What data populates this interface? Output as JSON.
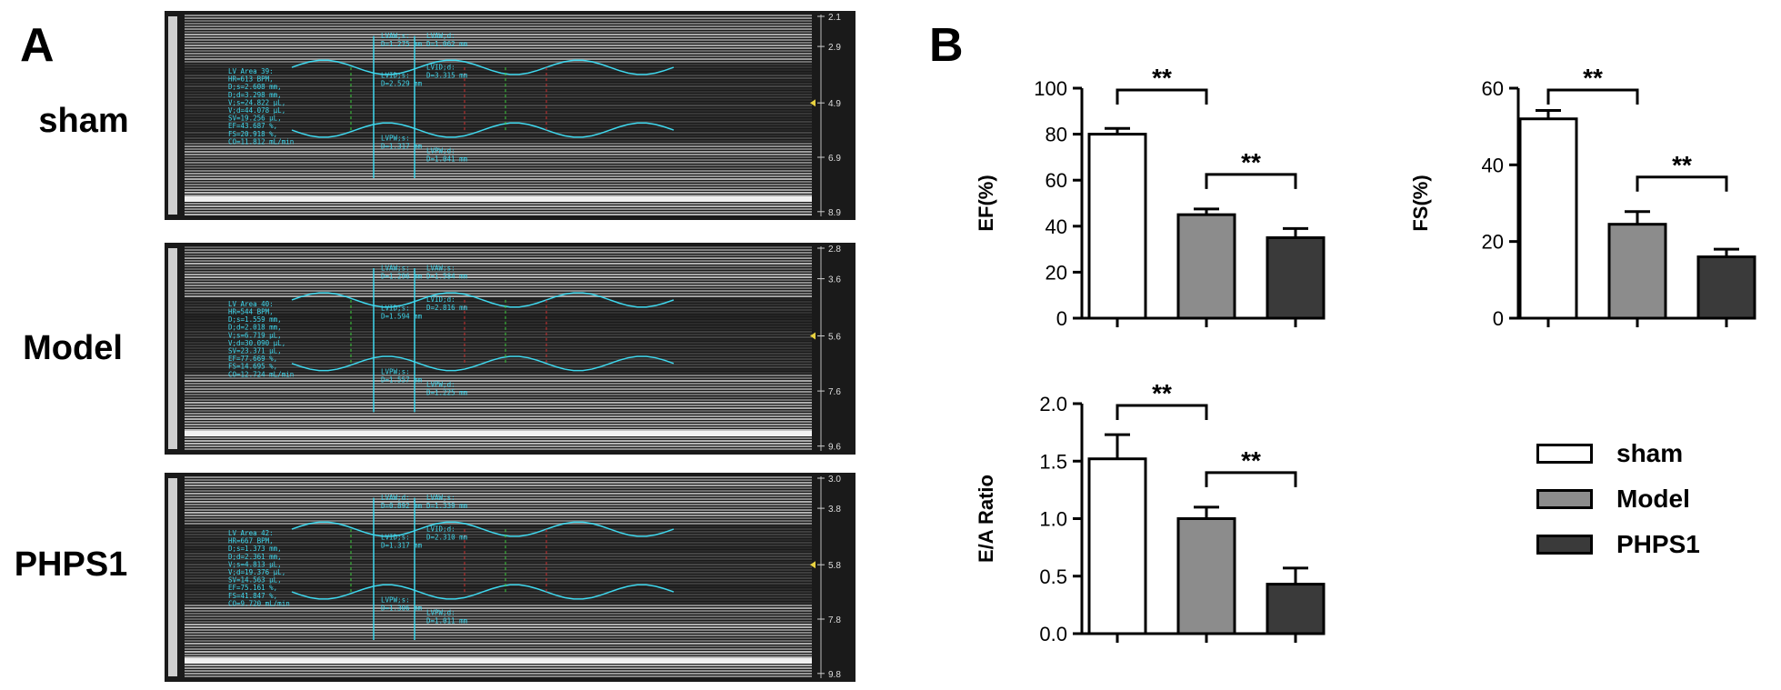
{
  "panels": {
    "a_label": "A",
    "b_label": "B"
  },
  "echo_rows": [
    {
      "label": "sham",
      "depth_ticks": [
        "2.1",
        "2.9",
        "4.9",
        "6.9",
        "8.9"
      ],
      "measurements": [
        "LV Area 39:",
        "HR=613 BPM,",
        "D;s=2.608 mm,",
        "D;d=3.298 mm,",
        "V;s=24.822 µL,",
        "V;d=44.078 µL,",
        "SV=19.256 µL,",
        "EF=43.687 %,",
        "FS=20.918 %,",
        "CO=11.812 mL/min"
      ],
      "tags": [
        "LVAW;s:",
        "D=1.275 mm",
        "LVAW;d:",
        "D=1.062 mm",
        "LVID;d:",
        "D=3.315 mm",
        "LVID;s:",
        "D=2.529 mm",
        "LVPW;s:",
        "D=1.317 mm",
        "LVPW;d:",
        "D=1.041 mm"
      ]
    },
    {
      "label": "Model",
      "depth_ticks": [
        "2.8",
        "3.6",
        "5.6",
        "7.6",
        "9.6"
      ],
      "measurements": [
        "LV Area 40:",
        "HR=544 BPM,",
        "D;s=1.559 mm,",
        "D;d=2.018 mm,",
        "V;s=6.719 µL,",
        "V;d=30.090 µL,",
        "SV=23.371 µL,",
        "EF=77.669 %,",
        "FS=14.695 %,",
        "CO=12.724 mL/min"
      ],
      "tags": [
        "LVAW;s:",
        "D=1.296 mm",
        "LVAW;s:",
        "D=1.584 mm",
        "LVID;d:",
        "D=2.816 mm",
        "LVID;s:",
        "D=1.594 mm",
        "LVPW;s:",
        "D=1.557 mm",
        "LVPW;d:",
        "D=1.225 mm"
      ]
    },
    {
      "label": "PHPS1",
      "depth_ticks": [
        "3.0",
        "3.8",
        "5.8",
        "7.8",
        "9.8"
      ],
      "measurements": [
        "LV Area 42:",
        "HR=667 BPM,",
        "D;s=1.373 mm,",
        "D;d=2.361 mm,",
        "V;s=4.813 µL,",
        "V;d=19.376 µL,",
        "SV=14.563 µL,",
        "EF=75.161 %,",
        "FS=41.847 %,",
        "CO=9.720 mL/min"
      ],
      "tags": [
        "LVAW;d:",
        "D=0.892 mm",
        "LVAW;s:",
        "D=1.339 mm",
        "LVID;d:",
        "D=2.310 mm",
        "LVID;s:",
        "D=1.317 mm",
        "LVPW;s:",
        "D=1.306 mm",
        "LVPW;d:",
        "D=1.011 mm"
      ]
    }
  ],
  "colors": {
    "sham": "#ffffff",
    "Model": "#8c8c8c",
    "PHPS1": "#3a3a3a",
    "echo_trace": "#3fd8ee"
  },
  "legend": [
    {
      "label": "sham",
      "color": "#ffffff"
    },
    {
      "label": "Model",
      "color": "#8c8c8c"
    },
    {
      "label": "PHPS1",
      "color": "#3a3a3a"
    }
  ],
  "chart_data": [
    {
      "type": "bar",
      "categories": [
        "sham",
        "Model",
        "PHPS1"
      ],
      "values": [
        80,
        45,
        35
      ],
      "errors": [
        2.5,
        2.5,
        4
      ],
      "ylabel": "EF(%)",
      "ylim": [
        0,
        100
      ],
      "yticks": [
        "0",
        "20",
        "40",
        "60",
        "80",
        "100"
      ],
      "significance": [
        {
          "from": 0,
          "to": 1,
          "label": "**"
        },
        {
          "from": 1,
          "to": 2,
          "label": "**"
        }
      ]
    },
    {
      "type": "bar",
      "categories": [
        "sham",
        "Model",
        "PHPS1"
      ],
      "values": [
        52,
        24.5,
        16
      ],
      "errors": [
        2.2,
        3.3,
        2
      ],
      "ylabel": "FS(%)",
      "ylim": [
        0,
        60
      ],
      "yticks": [
        "0",
        "20",
        "40",
        "60"
      ],
      "significance": [
        {
          "from": 0,
          "to": 1,
          "label": "**"
        },
        {
          "from": 1,
          "to": 2,
          "label": "**"
        }
      ]
    },
    {
      "type": "bar",
      "categories": [
        "sham",
        "Model",
        "PHPS1"
      ],
      "values": [
        1.52,
        1.0,
        0.43
      ],
      "errors": [
        0.21,
        0.1,
        0.14
      ],
      "ylabel": "E/A Ratio",
      "ylim": [
        0,
        2.0
      ],
      "yticks": [
        "0.0",
        "0.5",
        "1.0",
        "1.5",
        "2.0"
      ],
      "significance": [
        {
          "from": 0,
          "to": 1,
          "label": "**"
        },
        {
          "from": 1,
          "to": 2,
          "label": "**"
        }
      ]
    }
  ]
}
